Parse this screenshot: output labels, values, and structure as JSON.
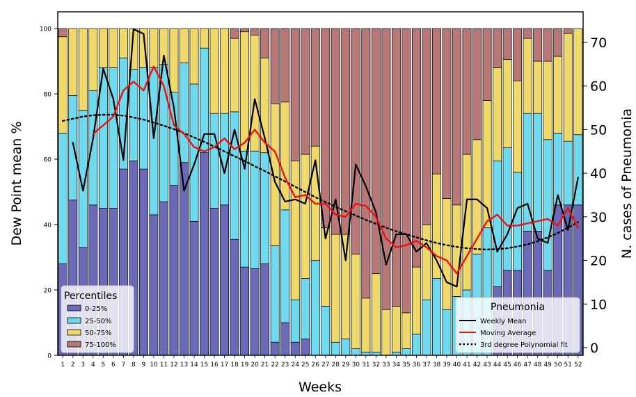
{
  "chart_data": {
    "type": "bar",
    "xlabel": "Weeks",
    "ylabel_left": "Dew Point mean %",
    "ylabel_right": "N. cases of Pneumonia",
    "ylim_left": [
      0,
      100
    ],
    "ylim_right": [
      -2,
      73
    ],
    "yticks_left": [
      "0",
      "20",
      "40",
      "60",
      "80",
      "100"
    ],
    "yticks_right": [
      "0",
      "10",
      "20",
      "30",
      "40",
      "50",
      "60",
      "70"
    ],
    "categories": [
      "1",
      "2",
      "3",
      "4",
      "5",
      "6",
      "7",
      "8",
      "9",
      "10",
      "11",
      "12",
      "13",
      "14",
      "15",
      "16",
      "17",
      "18",
      "19",
      "20",
      "21",
      "22",
      "23",
      "24",
      "25",
      "26",
      "27",
      "28",
      "29",
      "30",
      "31",
      "32",
      "33",
      "34",
      "35",
      "36",
      "37",
      "38",
      "39",
      "40",
      "41",
      "42",
      "43",
      "44",
      "45",
      "46",
      "47",
      "48",
      "49",
      "50",
      "51",
      "52"
    ],
    "percentile_series": [
      {
        "name": "0-25%",
        "color": "#6a6ab8",
        "values": [
          28,
          47.5,
          33,
          46,
          45,
          45,
          57,
          59.5,
          57,
          43,
          47,
          52,
          59,
          41,
          62,
          45,
          46,
          35.5,
          27,
          26.5,
          28,
          4,
          10,
          4,
          5,
          0,
          0,
          0,
          0,
          0,
          0,
          0,
          0,
          0,
          0,
          0,
          0,
          0,
          0,
          0,
          0,
          0,
          0,
          21,
          26,
          26,
          38,
          38,
          26,
          46,
          46,
          46
        ]
      },
      {
        "name": "25-50%",
        "color": "#6fd9ee",
        "values": [
          40,
          32,
          42,
          35,
          43,
          43,
          34,
          28,
          31,
          45,
          42,
          28.5,
          30.5,
          42,
          32,
          29,
          28,
          39,
          35.5,
          36,
          34,
          29.5,
          34.5,
          13,
          18.5,
          29,
          15,
          4,
          5,
          2,
          1,
          1,
          0,
          1,
          2,
          6.5,
          17,
          23.5,
          14,
          18,
          20,
          31,
          39,
          38.5,
          37.5,
          30,
          36,
          36,
          40,
          22,
          19.5,
          21.5
        ]
      },
      {
        "name": "50-75%",
        "color": "#efd96a",
        "values": [
          29.5,
          20.5,
          25,
          19,
          12,
          12,
          9,
          12.5,
          12,
          12,
          11,
          19.5,
          10.5,
          17,
          6,
          26,
          26,
          22.5,
          36.5,
          35.5,
          29,
          43.5,
          33,
          42.5,
          38,
          35,
          24,
          33,
          32,
          29,
          16.5,
          24,
          14,
          14,
          11,
          20.5,
          23,
          32,
          34,
          28,
          41.5,
          35,
          39,
          28.5,
          27,
          28,
          23,
          16,
          24,
          23.5,
          33,
          32.5
        ]
      },
      {
        "name": "75-100%",
        "color": "#b87878",
        "values": [
          2.5,
          0,
          0,
          0,
          0,
          0,
          0,
          0,
          0,
          0,
          0,
          0,
          0,
          0,
          0,
          0,
          0,
          3,
          1,
          2,
          9,
          23,
          22.5,
          40.5,
          38.5,
          36,
          61,
          63,
          63,
          69,
          82.5,
          75,
          86,
          85,
          87,
          73,
          60,
          44.5,
          52,
          54,
          38.5,
          34,
          22,
          12,
          9.5,
          16,
          3,
          10,
          10,
          8.5,
          1.5,
          0
        ]
      }
    ],
    "pneumonia_series": [
      {
        "name": "Weekly Mean",
        "color": "#000000",
        "values": [
          null,
          47,
          36,
          48,
          64,
          57,
          43,
          73,
          72,
          48,
          67,
          55,
          36,
          42,
          49,
          49,
          40,
          50,
          41,
          57,
          48,
          38,
          33.5,
          34,
          33,
          43,
          25,
          34,
          20,
          42,
          37,
          31,
          19,
          26,
          26,
          22,
          24,
          20,
          15,
          14,
          34,
          34,
          32,
          22,
          26,
          32,
          33,
          25,
          24,
          35,
          27,
          39
        ]
      },
      {
        "name": "Moving Average",
        "color": "#ee1111",
        "values": [
          null,
          null,
          null,
          49,
          51,
          53,
          59,
          61,
          59,
          64.5,
          60,
          51,
          49,
          46,
          45,
          46,
          48,
          45.5,
          47,
          50,
          47,
          45,
          39,
          34.5,
          35,
          33,
          33,
          30.5,
          30,
          33,
          32.5,
          30,
          25,
          23,
          23.5,
          24.5,
          23,
          21,
          20,
          17,
          21,
          25,
          29,
          30.5,
          28,
          28,
          28.5,
          29,
          29.5,
          28,
          32,
          27.5
        ]
      },
      {
        "name": "3rd degree Polynomial fit",
        "color": "#000000",
        "values": [
          52,
          52.5,
          53,
          53.3,
          53.4,
          53.4,
          53.2,
          52.8,
          52.3,
          51.6,
          50.9,
          50.1,
          49.2,
          48.2,
          47.2,
          46.1,
          45,
          43.9,
          42.8,
          41.6,
          40.5,
          39.3,
          38.1,
          36.9,
          35.7,
          34.5,
          33.4,
          32.3,
          31.3,
          30.3,
          29.3,
          28.4,
          27.5,
          26.7,
          26,
          25.3,
          24.6,
          24,
          23.5,
          23.1,
          22.8,
          22.6,
          22.5,
          22.6,
          22.8,
          23.2,
          23.7,
          24.4,
          25.3,
          26.3,
          27.5,
          28.8
        ]
      }
    ],
    "legend_percentiles": {
      "title": "Percentiles",
      "placement": "lower-left"
    },
    "legend_pneumonia": {
      "title": "Pneumonia",
      "placement": "lower-right"
    },
    "grid": false
  }
}
